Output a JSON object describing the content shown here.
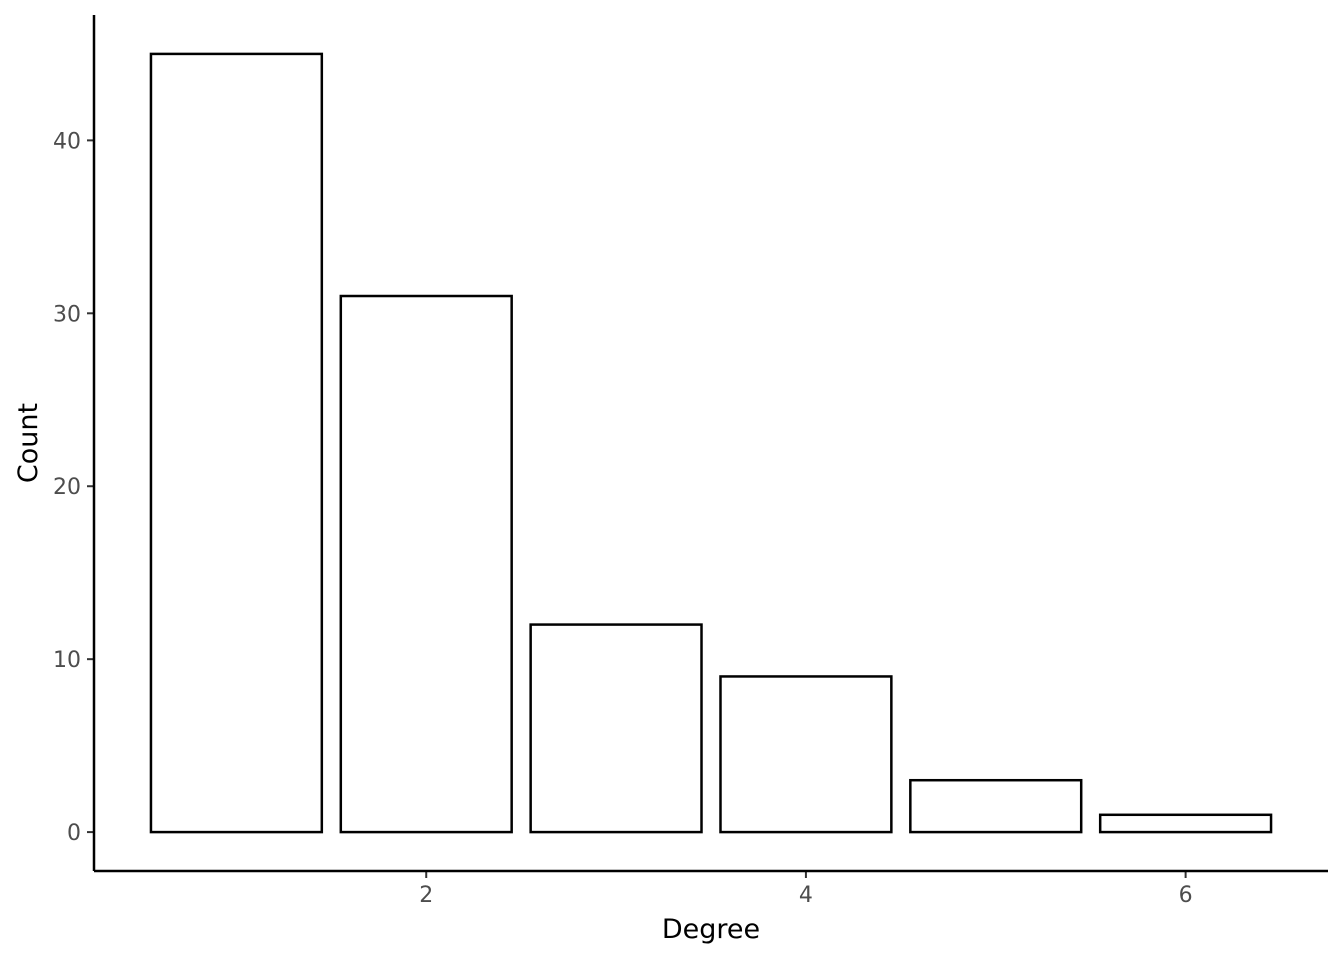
{
  "chart_data": {
    "type": "bar",
    "x": [
      1,
      2,
      3,
      4,
      5,
      6
    ],
    "values": [
      45,
      31,
      12,
      9,
      3,
      1
    ],
    "xlabel": "Degree",
    "ylabel": "Count",
    "xticks": [
      {
        "value": 2,
        "label": "2"
      },
      {
        "value": 4,
        "label": "4"
      },
      {
        "value": 6,
        "label": "6"
      }
    ],
    "yticks": [
      {
        "value": 0,
        "label": "0"
      },
      {
        "value": 10,
        "label": "10"
      },
      {
        "value": 20,
        "label": "20"
      },
      {
        "value": 30,
        "label": "30"
      },
      {
        "value": 40,
        "label": "40"
      }
    ],
    "xlim": [
      0.25,
      6.75
    ],
    "ylim": [
      -2.25,
      47.25
    ],
    "grid": false,
    "bar_fill": "#ffffff",
    "bar_stroke": "#000000"
  }
}
